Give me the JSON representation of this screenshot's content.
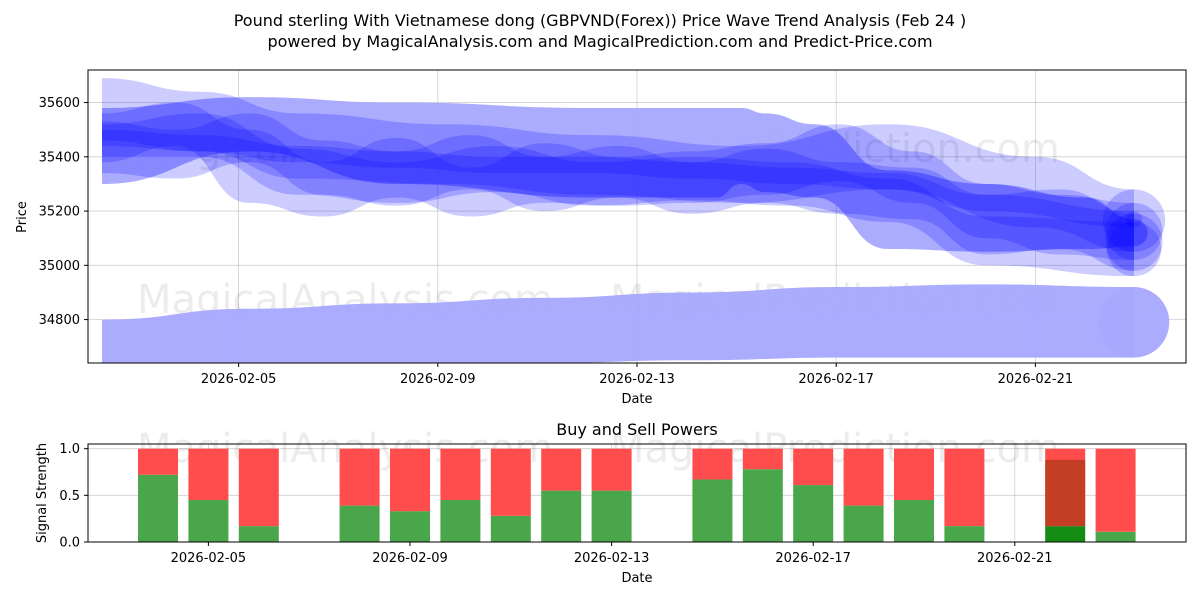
{
  "header": {
    "title_line1": "Pound sterling With Vietnamese dong (GBPVND(Forex)) Price Wave Trend Analysis (Feb 24 )",
    "title_line2": "powered by MagicalAnalysis.com and MagicalPrediction.com and Predict-Price.com"
  },
  "watermarks": {
    "left": "MagicalAnalysis.com",
    "right": "MagicalPrediction.com"
  },
  "colors": {
    "wave": "#0000ff",
    "wave_light": "#a8a8ff",
    "buy": "#4aa64a",
    "sell": "#ff4d4d",
    "buy_strong": "#148c14",
    "sell_strong": "#ff1a1a"
  },
  "chart_data": [
    {
      "type": "area",
      "title": "",
      "xlabel": "Date",
      "ylabel": "Price",
      "grid": true,
      "x_ticks": [
        "2026-02-05",
        "2026-02-09",
        "2026-02-13",
        "2026-02-17",
        "2026-02-21"
      ],
      "y_ticks": [
        34800,
        35000,
        35200,
        35400,
        35600
      ],
      "ylim": [
        34640,
        35720
      ],
      "x_domain_days": [
        0,
        21
      ],
      "bands": [
        {
          "name": "band-main-wide",
          "x": [
            0,
            3,
            6,
            10,
            12.5,
            13,
            13.5,
            14.5,
            16,
            18,
            20,
            21
          ],
          "upper": [
            35580,
            35620,
            35600,
            35580,
            35580,
            35580,
            35560,
            35520,
            35350,
            35300,
            35250,
            35170
          ],
          "lower": [
            35300,
            35420,
            35300,
            35250,
            35250,
            35300,
            35270,
            35250,
            35060,
            35050,
            35060,
            35070
          ]
        },
        {
          "name": "band-mid-1",
          "x": [
            0,
            1.5,
            3,
            4.5,
            6,
            7.5,
            9,
            10.5,
            12,
            13.5,
            15,
            16.5,
            18,
            19.5,
            21
          ],
          "upper": [
            35560,
            35600,
            35500,
            35380,
            35470,
            35360,
            35450,
            35400,
            35420,
            35450,
            35520,
            35420,
            35300,
            35260,
            35230
          ],
          "lower": [
            35380,
            35440,
            35230,
            35180,
            35250,
            35180,
            35230,
            35220,
            35230,
            35260,
            35310,
            35230,
            35100,
            35040,
            35020
          ]
        },
        {
          "name": "band-mid-2",
          "x": [
            0,
            1.5,
            3,
            4.5,
            6,
            7.5,
            9,
            10.5,
            12,
            13.5,
            15,
            16.5,
            18,
            19.5,
            21
          ],
          "upper": [
            35530,
            35500,
            35560,
            35460,
            35420,
            35480,
            35400,
            35440,
            35380,
            35430,
            35380,
            35360,
            35260,
            35280,
            35190
          ],
          "lower": [
            35340,
            35320,
            35380,
            35260,
            35220,
            35280,
            35200,
            35250,
            35190,
            35230,
            35190,
            35170,
            35040,
            35060,
            34980
          ]
        },
        {
          "name": "band-mid-3",
          "x": [
            0,
            2,
            4,
            6,
            8,
            10,
            12,
            14,
            16,
            18,
            21
          ],
          "upper": [
            35520,
            35560,
            35430,
            35380,
            35440,
            35380,
            35400,
            35380,
            35320,
            35180,
            35160
          ],
          "lower": [
            35400,
            35400,
            35260,
            35230,
            35270,
            35220,
            35240,
            35220,
            35160,
            35000,
            34960
          ]
        },
        {
          "name": "band-top-light",
          "x": [
            0,
            2,
            4,
            7,
            10,
            13,
            16,
            19,
            21
          ],
          "upper": [
            35690,
            35640,
            35560,
            35520,
            35480,
            35440,
            35520,
            35400,
            35280
          ],
          "lower": [
            35460,
            35420,
            35320,
            35300,
            35260,
            35230,
            35280,
            35140,
            35050
          ]
        },
        {
          "name": "band-core",
          "x": [
            0,
            2,
            4,
            6,
            8,
            10,
            12,
            14,
            16,
            18,
            21
          ],
          "upper": [
            35500,
            35480,
            35440,
            35420,
            35400,
            35400,
            35380,
            35360,
            35340,
            35260,
            35200
          ],
          "lower": [
            35440,
            35420,
            35380,
            35360,
            35340,
            35340,
            35320,
            35300,
            35280,
            35200,
            35140
          ]
        },
        {
          "name": "band-bottom-lower",
          "x": [
            0,
            3,
            6,
            9,
            12,
            15,
            18,
            21
          ],
          "upper": [
            34800,
            34840,
            34860,
            34880,
            34900,
            34920,
            34930,
            34920
          ],
          "lower": [
            34630,
            34630,
            34630,
            34640,
            34650,
            34660,
            34660,
            34660
          ]
        }
      ]
    },
    {
      "type": "bar",
      "title": "Buy and Sell Powers",
      "xlabel": "Date",
      "ylabel": "Signal Strength",
      "ylim": [
        0,
        1.05
      ],
      "y_ticks": [
        "0.0",
        "0.5",
        "1.0"
      ],
      "x_ticks": [
        "2026-02-05",
        "2026-02-09",
        "2026-02-13",
        "2026-02-17",
        "2026-02-21"
      ],
      "categories": [
        "2026-02-04",
        "2026-02-05",
        "2026-02-06",
        "2026-02-08",
        "2026-02-09",
        "2026-02-10",
        "2026-02-11",
        "2026-02-12",
        "2026-02-13",
        "2026-02-15",
        "2026-02-16",
        "2026-02-17",
        "2026-02-18",
        "2026-02-19",
        "2026-02-20",
        "2026-02-22",
        "2026-02-23"
      ],
      "series": [
        {
          "name": "Buy",
          "values": [
            0.72,
            0.45,
            0.17,
            0.39,
            0.33,
            0.45,
            0.28,
            0.55,
            0.55,
            0.67,
            0.78,
            0.61,
            0.39,
            0.45,
            0.17,
            0.17,
            0.11
          ]
        },
        {
          "name": "Sell",
          "values": [
            0.28,
            0.55,
            0.83,
            0.61,
            0.67,
            0.55,
            0.72,
            0.45,
            0.45,
            0.33,
            0.22,
            0.39,
            0.61,
            0.55,
            0.83,
            0.83,
            0.89
          ]
        }
      ],
      "highlighted": [
        "2026-02-22"
      ]
    }
  ]
}
